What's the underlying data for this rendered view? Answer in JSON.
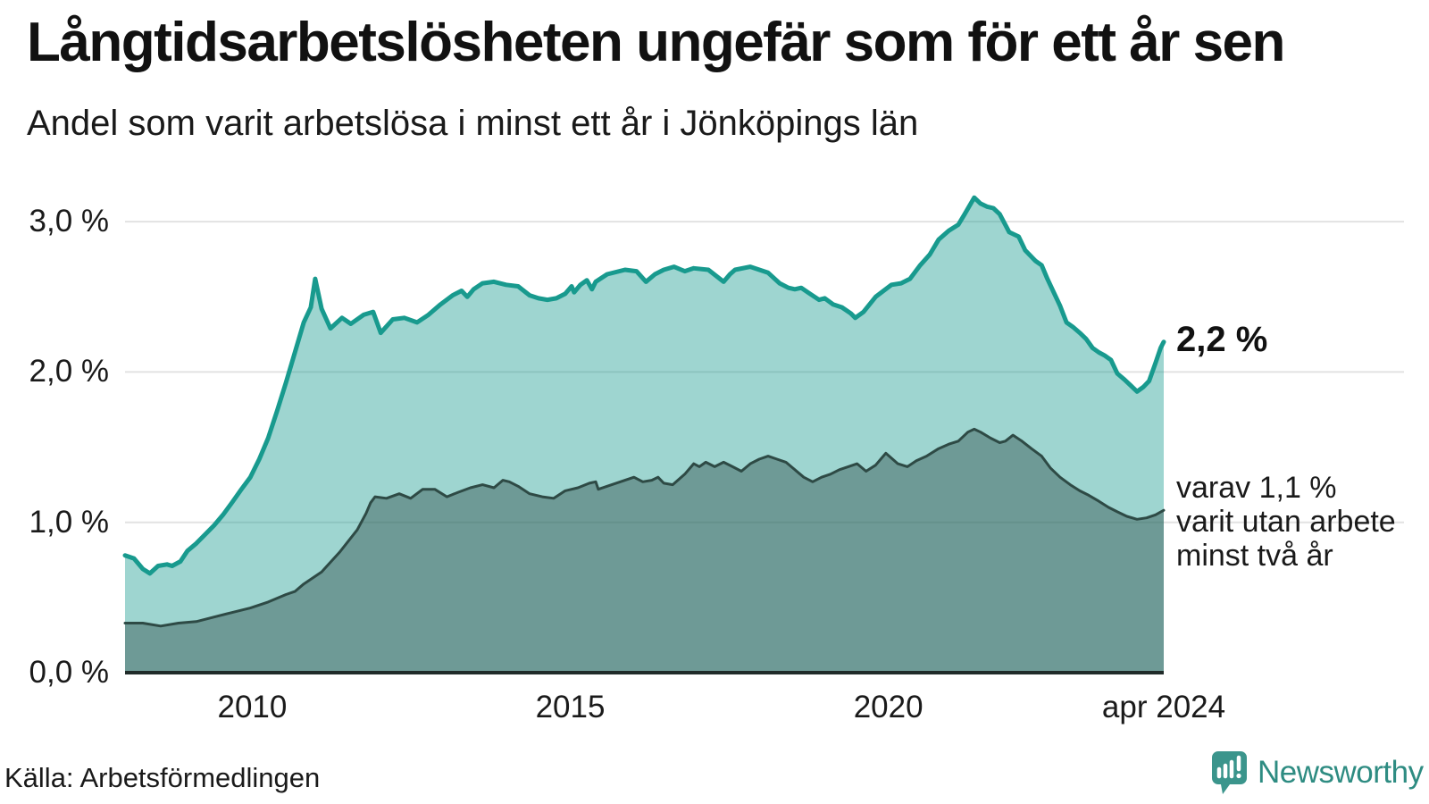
{
  "header": {
    "title": "Långtidsarbetslösheten ungefär som för ett år sen",
    "subtitle": "Andel som varit arbetslösa i minst ett år i Jönköpings län"
  },
  "chart_data": {
    "type": "area",
    "title": "Långtidsarbetslösheten ungefär som för ett år sen",
    "subtitle": "Andel som varit arbetslösa i minst ett år i Jönköpings län",
    "unit": "%",
    "region": "Jönköpings län",
    "x_axis": {
      "range": [
        2008.0,
        2024.33
      ],
      "ticks": [
        {
          "label": "2010",
          "year": 2010
        },
        {
          "label": "2015",
          "year": 2015
        },
        {
          "label": "2020",
          "year": 2020
        },
        {
          "label": "apr 2024",
          "year": 2024.33
        }
      ]
    },
    "y_axis": {
      "range": [
        0,
        3.3
      ],
      "gridline_values": [
        1,
        2,
        3
      ],
      "gridline_color": "#e2e2e2",
      "baseline_color": "#202b29",
      "ticks": [
        {
          "label": "3,0 %",
          "value": 3
        },
        {
          "label": "2,0 %",
          "value": 2
        },
        {
          "label": "1,0 %",
          "value": 1
        },
        {
          "label": "0,0 %",
          "value": 0
        }
      ]
    },
    "annotations": {
      "end_value_label": "2,2 %",
      "secondary_label_lines": [
        "varav 1,1 %",
        "varit utan arbete",
        "minst två år"
      ]
    },
    "series": [
      {
        "name": "Arbetslösa minst ett år",
        "end_value": 2.2,
        "line_color": "#189a8e",
        "fill_color": "rgba(24,154,142,0.42)",
        "line_width": 5,
        "points": [
          [
            2008.0,
            0.78
          ],
          [
            2008.14,
            0.76
          ],
          [
            2008.28,
            0.69
          ],
          [
            2008.39,
            0.66
          ],
          [
            2008.52,
            0.71
          ],
          [
            2008.66,
            0.72
          ],
          [
            2008.74,
            0.71
          ],
          [
            2008.87,
            0.74
          ],
          [
            2008.98,
            0.81
          ],
          [
            2009.12,
            0.86
          ],
          [
            2009.26,
            0.92
          ],
          [
            2009.4,
            0.98
          ],
          [
            2009.54,
            1.05
          ],
          [
            2009.68,
            1.13
          ],
          [
            2009.83,
            1.22
          ],
          [
            2009.97,
            1.3
          ],
          [
            2010.11,
            1.42
          ],
          [
            2010.25,
            1.56
          ],
          [
            2010.39,
            1.74
          ],
          [
            2010.53,
            1.93
          ],
          [
            2010.67,
            2.13
          ],
          [
            2010.81,
            2.33
          ],
          [
            2010.92,
            2.43
          ],
          [
            2010.99,
            2.62
          ],
          [
            2011.09,
            2.42
          ],
          [
            2011.23,
            2.29
          ],
          [
            2011.41,
            2.36
          ],
          [
            2011.55,
            2.32
          ],
          [
            2011.75,
            2.38
          ],
          [
            2011.9,
            2.4
          ],
          [
            2012.02,
            2.26
          ],
          [
            2012.21,
            2.35
          ],
          [
            2012.39,
            2.36
          ],
          [
            2012.59,
            2.33
          ],
          [
            2012.77,
            2.38
          ],
          [
            2012.96,
            2.45
          ],
          [
            2013.15,
            2.51
          ],
          [
            2013.29,
            2.54
          ],
          [
            2013.38,
            2.5
          ],
          [
            2013.48,
            2.55
          ],
          [
            2013.62,
            2.59
          ],
          [
            2013.8,
            2.6
          ],
          [
            2013.99,
            2.58
          ],
          [
            2014.18,
            2.57
          ],
          [
            2014.36,
            2.51
          ],
          [
            2014.5,
            2.49
          ],
          [
            2014.64,
            2.48
          ],
          [
            2014.78,
            2.49
          ],
          [
            2014.92,
            2.52
          ],
          [
            2015.02,
            2.57
          ],
          [
            2015.06,
            2.53
          ],
          [
            2015.16,
            2.58
          ],
          [
            2015.26,
            2.61
          ],
          [
            2015.34,
            2.55
          ],
          [
            2015.4,
            2.6
          ],
          [
            2015.58,
            2.65
          ],
          [
            2015.86,
            2.68
          ],
          [
            2016.04,
            2.67
          ],
          [
            2016.19,
            2.6
          ],
          [
            2016.33,
            2.65
          ],
          [
            2016.47,
            2.68
          ],
          [
            2016.63,
            2.7
          ],
          [
            2016.8,
            2.67
          ],
          [
            2016.94,
            2.69
          ],
          [
            2017.17,
            2.68
          ],
          [
            2017.41,
            2.6
          ],
          [
            2017.51,
            2.65
          ],
          [
            2017.59,
            2.68
          ],
          [
            2017.83,
            2.7
          ],
          [
            2018.11,
            2.66
          ],
          [
            2018.29,
            2.59
          ],
          [
            2018.43,
            2.56
          ],
          [
            2018.53,
            2.55
          ],
          [
            2018.63,
            2.56
          ],
          [
            2018.77,
            2.52
          ],
          [
            2018.91,
            2.48
          ],
          [
            2019.0,
            2.49
          ],
          [
            2019.13,
            2.45
          ],
          [
            2019.27,
            2.43
          ],
          [
            2019.41,
            2.39
          ],
          [
            2019.48,
            2.36
          ],
          [
            2019.61,
            2.4
          ],
          [
            2019.8,
            2.5
          ],
          [
            2020.05,
            2.58
          ],
          [
            2020.2,
            2.59
          ],
          [
            2020.34,
            2.62
          ],
          [
            2020.5,
            2.71
          ],
          [
            2020.65,
            2.78
          ],
          [
            2020.79,
            2.88
          ],
          [
            2020.95,
            2.94
          ],
          [
            2021.1,
            2.98
          ],
          [
            2021.2,
            3.05
          ],
          [
            2021.35,
            3.16
          ],
          [
            2021.45,
            3.12
          ],
          [
            2021.55,
            3.1
          ],
          [
            2021.65,
            3.09
          ],
          [
            2021.75,
            3.05
          ],
          [
            2021.9,
            2.93
          ],
          [
            2022.05,
            2.9
          ],
          [
            2022.15,
            2.81
          ],
          [
            2022.31,
            2.74
          ],
          [
            2022.41,
            2.71
          ],
          [
            2022.5,
            2.62
          ],
          [
            2022.6,
            2.53
          ],
          [
            2022.7,
            2.44
          ],
          [
            2022.8,
            2.33
          ],
          [
            2022.9,
            2.3
          ],
          [
            2023.01,
            2.26
          ],
          [
            2023.11,
            2.22
          ],
          [
            2023.21,
            2.16
          ],
          [
            2023.31,
            2.13
          ],
          [
            2023.4,
            2.11
          ],
          [
            2023.5,
            2.08
          ],
          [
            2023.6,
            1.99
          ],
          [
            2023.71,
            1.95
          ],
          [
            2023.81,
            1.91
          ],
          [
            2023.91,
            1.87
          ],
          [
            2024.01,
            1.9
          ],
          [
            2024.1,
            1.94
          ],
          [
            2024.2,
            2.06
          ],
          [
            2024.28,
            2.16
          ],
          [
            2024.33,
            2.2
          ]
        ]
      },
      {
        "name": "varav utan arbete minst två år",
        "end_value": 1.1,
        "line_color": "#2e4a45",
        "fill_color": "rgba(46,74,69,0.42)",
        "line_width": 3,
        "points": [
          [
            2008.0,
            0.33
          ],
          [
            2008.28,
            0.33
          ],
          [
            2008.56,
            0.31
          ],
          [
            2008.84,
            0.33
          ],
          [
            2009.12,
            0.34
          ],
          [
            2009.4,
            0.37
          ],
          [
            2009.68,
            0.4
          ],
          [
            2009.97,
            0.43
          ],
          [
            2010.25,
            0.47
          ],
          [
            2010.53,
            0.52
          ],
          [
            2010.67,
            0.54
          ],
          [
            2010.81,
            0.59
          ],
          [
            2011.09,
            0.67
          ],
          [
            2011.37,
            0.8
          ],
          [
            2011.65,
            0.95
          ],
          [
            2011.79,
            1.06
          ],
          [
            2011.86,
            1.13
          ],
          [
            2011.93,
            1.17
          ],
          [
            2012.11,
            1.16
          ],
          [
            2012.31,
            1.19
          ],
          [
            2012.49,
            1.16
          ],
          [
            2012.68,
            1.22
          ],
          [
            2012.87,
            1.22
          ],
          [
            2013.06,
            1.17
          ],
          [
            2013.24,
            1.2
          ],
          [
            2013.43,
            1.23
          ],
          [
            2013.62,
            1.25
          ],
          [
            2013.8,
            1.23
          ],
          [
            2013.94,
            1.28
          ],
          [
            2014.04,
            1.27
          ],
          [
            2014.18,
            1.24
          ],
          [
            2014.36,
            1.19
          ],
          [
            2014.56,
            1.17
          ],
          [
            2014.74,
            1.16
          ],
          [
            2014.92,
            1.21
          ],
          [
            2015.12,
            1.23
          ],
          [
            2015.3,
            1.26
          ],
          [
            2015.4,
            1.27
          ],
          [
            2015.44,
            1.22
          ],
          [
            2015.58,
            1.24
          ],
          [
            2015.86,
            1.28
          ],
          [
            2016.0,
            1.3
          ],
          [
            2016.14,
            1.27
          ],
          [
            2016.28,
            1.28
          ],
          [
            2016.38,
            1.3
          ],
          [
            2016.47,
            1.26
          ],
          [
            2016.61,
            1.25
          ],
          [
            2016.8,
            1.32
          ],
          [
            2016.94,
            1.39
          ],
          [
            2017.03,
            1.37
          ],
          [
            2017.13,
            1.4
          ],
          [
            2017.27,
            1.37
          ],
          [
            2017.41,
            1.4
          ],
          [
            2017.55,
            1.37
          ],
          [
            2017.69,
            1.34
          ],
          [
            2017.83,
            1.39
          ],
          [
            2017.97,
            1.42
          ],
          [
            2018.11,
            1.44
          ],
          [
            2018.25,
            1.42
          ],
          [
            2018.39,
            1.4
          ],
          [
            2018.67,
            1.3
          ],
          [
            2018.81,
            1.27
          ],
          [
            2018.95,
            1.3
          ],
          [
            2019.09,
            1.32
          ],
          [
            2019.23,
            1.35
          ],
          [
            2019.37,
            1.37
          ],
          [
            2019.51,
            1.39
          ],
          [
            2019.65,
            1.34
          ],
          [
            2019.8,
            1.38
          ],
          [
            2019.96,
            1.46
          ],
          [
            2020.15,
            1.39
          ],
          [
            2020.3,
            1.37
          ],
          [
            2020.44,
            1.41
          ],
          [
            2020.6,
            1.44
          ],
          [
            2020.79,
            1.49
          ],
          [
            2020.95,
            1.52
          ],
          [
            2021.1,
            1.54
          ],
          [
            2021.25,
            1.6
          ],
          [
            2021.35,
            1.62
          ],
          [
            2021.45,
            1.6
          ],
          [
            2021.61,
            1.56
          ],
          [
            2021.75,
            1.53
          ],
          [
            2021.84,
            1.54
          ],
          [
            2021.96,
            1.58
          ],
          [
            2022.1,
            1.54
          ],
          [
            2022.25,
            1.49
          ],
          [
            2022.41,
            1.44
          ],
          [
            2022.55,
            1.36
          ],
          [
            2022.7,
            1.3
          ],
          [
            2022.86,
            1.25
          ],
          [
            2023.01,
            1.21
          ],
          [
            2023.15,
            1.18
          ],
          [
            2023.31,
            1.14
          ],
          [
            2023.46,
            1.1
          ],
          [
            2023.6,
            1.07
          ],
          [
            2023.75,
            1.04
          ],
          [
            2023.91,
            1.02
          ],
          [
            2024.06,
            1.03
          ],
          [
            2024.2,
            1.05
          ],
          [
            2024.33,
            1.08
          ]
        ]
      }
    ],
    "legend": "none",
    "grid": "horizontal"
  },
  "footer": {
    "source": "Källa: Arbetsförmedlingen",
    "logo_text": "Newsworthy",
    "logo_color": "#2e8c82",
    "logo_icon_color": "#3b958c"
  }
}
